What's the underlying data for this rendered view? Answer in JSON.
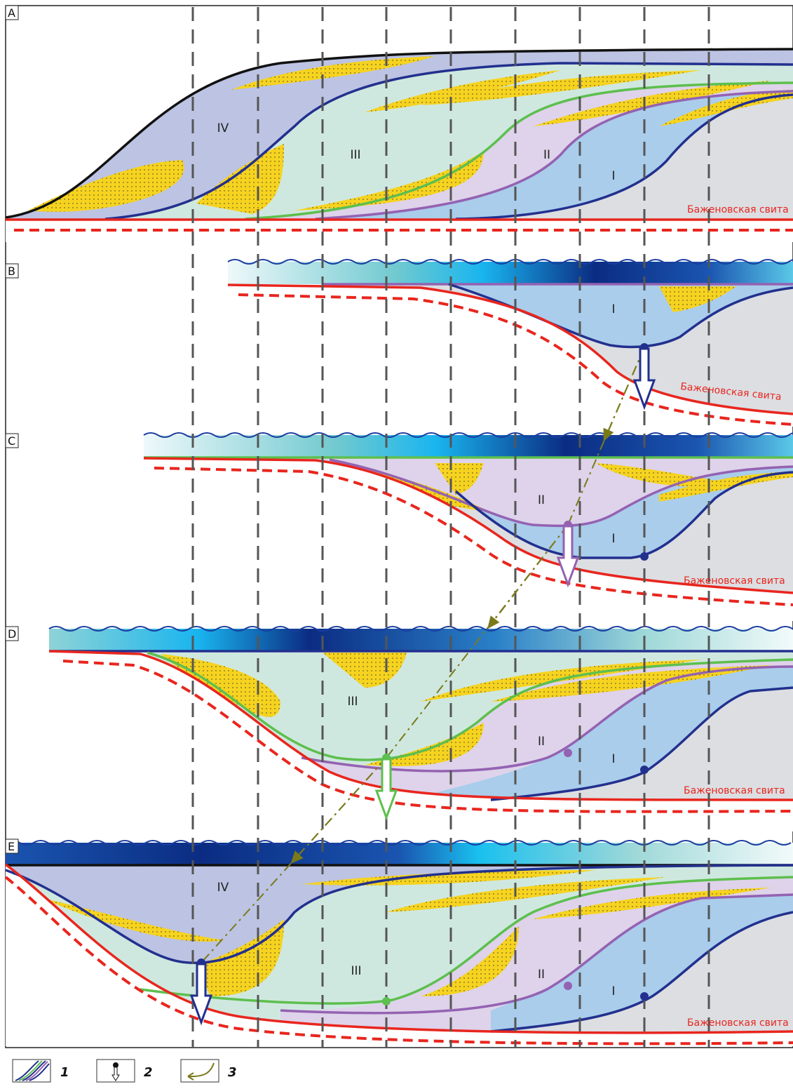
{
  "panels": [
    {
      "label": "A",
      "units": [
        "IV",
        "III",
        "II",
        "I"
      ],
      "formation": "Баженовская свита"
    },
    {
      "label": "B",
      "units": [
        "I"
      ],
      "formation": "Баженовская свита"
    },
    {
      "label": "C",
      "units": [
        "II",
        "I"
      ],
      "formation": "Баженовская свита"
    },
    {
      "label": "D",
      "units": [
        "III",
        "II",
        "I"
      ],
      "formation": "Баженовская свита"
    },
    {
      "label": "E",
      "units": [
        "IV",
        "III",
        "II",
        "I"
      ],
      "formation": "Баженовская свита"
    }
  ],
  "legend": [
    "1",
    "2",
    "3"
  ]
}
